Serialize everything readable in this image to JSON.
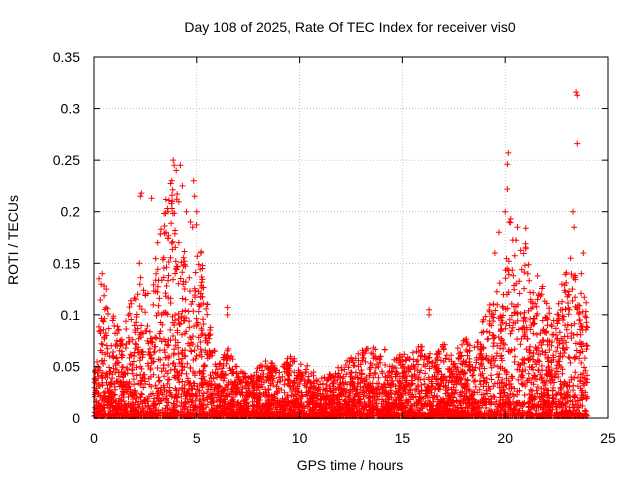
{
  "chart_data": {
    "type": "scatter",
    "title": "Day 108 of 2025, Rate Of TEC Index for receiver vis0",
    "xlabel": "GPS time / hours",
    "ylabel": "ROTI / TECUs",
    "xlim": [
      0,
      25
    ],
    "ylim": [
      0,
      0.35
    ],
    "xticks": [
      "0",
      "5",
      "10",
      "15",
      "20",
      "25"
    ],
    "yticks": [
      "0",
      "0.05",
      "0.1",
      "0.15",
      "0.2",
      "0.25",
      "0.3",
      "0.35"
    ],
    "grid": true,
    "marker": "+",
    "color": "#ff0000",
    "series": [
      {
        "envelope": [
          [
            0.0,
            0.03
          ],
          [
            0.2,
            0.08
          ],
          [
            0.3,
            0.14
          ],
          [
            0.5,
            0.13
          ],
          [
            0.7,
            0.1
          ],
          [
            1.0,
            0.1
          ],
          [
            1.3,
            0.08
          ],
          [
            1.6,
            0.1
          ],
          [
            2.0,
            0.13
          ],
          [
            2.2,
            0.15
          ],
          [
            2.5,
            0.13
          ],
          [
            2.8,
            0.12
          ],
          [
            3.0,
            0.17
          ],
          [
            3.3,
            0.2
          ],
          [
            3.6,
            0.22
          ],
          [
            3.9,
            0.24
          ],
          [
            4.2,
            0.2
          ],
          [
            4.5,
            0.15
          ],
          [
            4.8,
            0.12
          ],
          [
            5.0,
            0.2
          ],
          [
            5.3,
            0.15
          ],
          [
            5.6,
            0.1
          ],
          [
            6.0,
            0.05
          ],
          [
            6.5,
            0.07
          ],
          [
            7.0,
            0.05
          ],
          [
            7.5,
            0.04
          ],
          [
            8.0,
            0.05
          ],
          [
            8.5,
            0.06
          ],
          [
            9.0,
            0.05
          ],
          [
            9.5,
            0.06
          ],
          [
            10.0,
            0.055
          ],
          [
            10.5,
            0.05
          ],
          [
            11.0,
            0.04
          ],
          [
            11.5,
            0.045
          ],
          [
            12.0,
            0.05
          ],
          [
            12.5,
            0.06
          ],
          [
            13.0,
            0.065
          ],
          [
            13.5,
            0.07
          ],
          [
            14.0,
            0.07
          ],
          [
            14.5,
            0.06
          ],
          [
            15.0,
            0.065
          ],
          [
            15.5,
            0.07
          ],
          [
            16.0,
            0.07
          ],
          [
            16.5,
            0.06
          ],
          [
            17.0,
            0.075
          ],
          [
            17.5,
            0.06
          ],
          [
            18.0,
            0.08
          ],
          [
            18.5,
            0.07
          ],
          [
            19.0,
            0.1
          ],
          [
            19.5,
            0.12
          ],
          [
            20.0,
            0.15
          ],
          [
            20.3,
            0.2
          ],
          [
            20.6,
            0.17
          ],
          [
            21.0,
            0.18
          ],
          [
            21.3,
            0.13
          ],
          [
            21.6,
            0.14
          ],
          [
            22.0,
            0.12
          ],
          [
            22.3,
            0.09
          ],
          [
            22.6,
            0.12
          ],
          [
            23.0,
            0.15
          ],
          [
            23.3,
            0.16
          ],
          [
            23.6,
            0.14
          ],
          [
            24.0,
            0.11
          ]
        ],
        "outliers": [
          [
            0.25,
            0.135
          ],
          [
            0.4,
            0.14
          ],
          [
            0.6,
            0.125
          ],
          [
            1.2,
            0.085
          ],
          [
            2.2,
            0.15
          ],
          [
            2.25,
            0.215
          ],
          [
            2.3,
            0.218
          ],
          [
            2.8,
            0.213
          ],
          [
            3.5,
            0.18
          ],
          [
            3.6,
            0.2
          ],
          [
            3.8,
            0.21
          ],
          [
            3.85,
            0.25
          ],
          [
            3.9,
            0.245
          ],
          [
            4.0,
            0.24
          ],
          [
            4.2,
            0.245
          ],
          [
            4.3,
            0.225
          ],
          [
            4.5,
            0.2
          ],
          [
            4.7,
            0.19
          ],
          [
            4.8,
            0.185
          ],
          [
            4.85,
            0.23
          ],
          [
            4.9,
            0.215
          ],
          [
            5.0,
            0.2
          ],
          [
            5.2,
            0.16
          ],
          [
            6.5,
            0.107
          ],
          [
            6.5,
            0.1
          ],
          [
            16.3,
            0.105
          ],
          [
            16.3,
            0.1
          ],
          [
            19.5,
            0.16
          ],
          [
            19.7,
            0.18
          ],
          [
            20.0,
            0.2
          ],
          [
            20.1,
            0.246
          ],
          [
            20.15,
            0.257
          ],
          [
            20.1,
            0.222
          ],
          [
            20.2,
            0.19
          ],
          [
            20.6,
            0.185
          ],
          [
            21.0,
            0.184
          ],
          [
            21.0,
            0.164
          ],
          [
            23.3,
            0.2
          ],
          [
            23.35,
            0.185
          ],
          [
            23.45,
            0.316
          ],
          [
            23.5,
            0.313
          ],
          [
            23.5,
            0.266
          ],
          [
            23.8,
            0.16
          ],
          [
            23.7,
            0.14
          ]
        ]
      }
    ]
  }
}
